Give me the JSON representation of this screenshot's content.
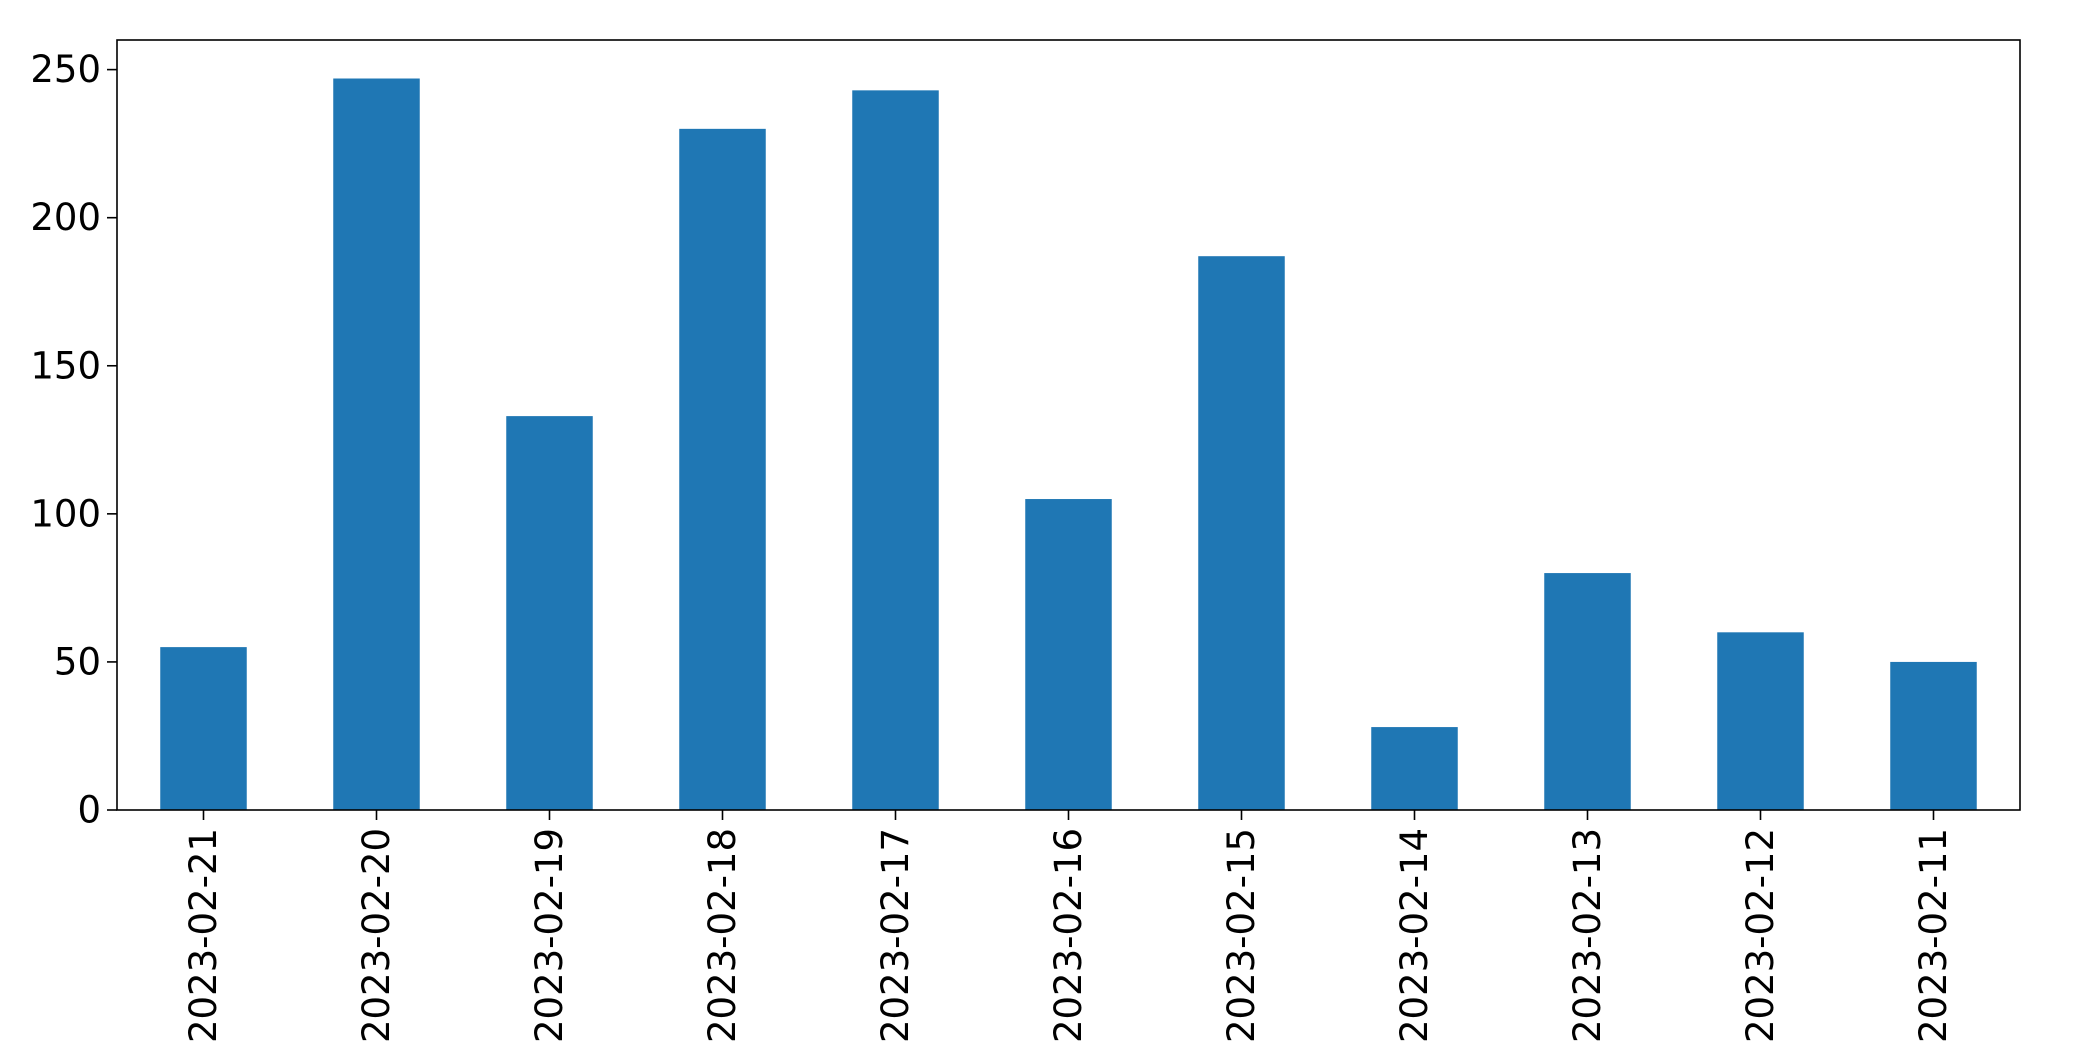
{
  "chart_data": {
    "type": "bar",
    "categories": [
      "2023-02-21",
      "2023-02-20",
      "2023-02-19",
      "2023-02-18",
      "2023-02-17",
      "2023-02-16",
      "2023-02-15",
      "2023-02-14",
      "2023-02-13",
      "2023-02-12",
      "2023-02-11"
    ],
    "values": [
      55,
      247,
      133,
      230,
      243,
      105,
      187,
      28,
      80,
      60,
      50
    ],
    "ylim": [
      0,
      260
    ],
    "yticks": [
      "0",
      "50",
      "100",
      "150",
      "200",
      "250"
    ],
    "grid": false,
    "legend": "none",
    "bar_color": "#1f77b4"
  }
}
